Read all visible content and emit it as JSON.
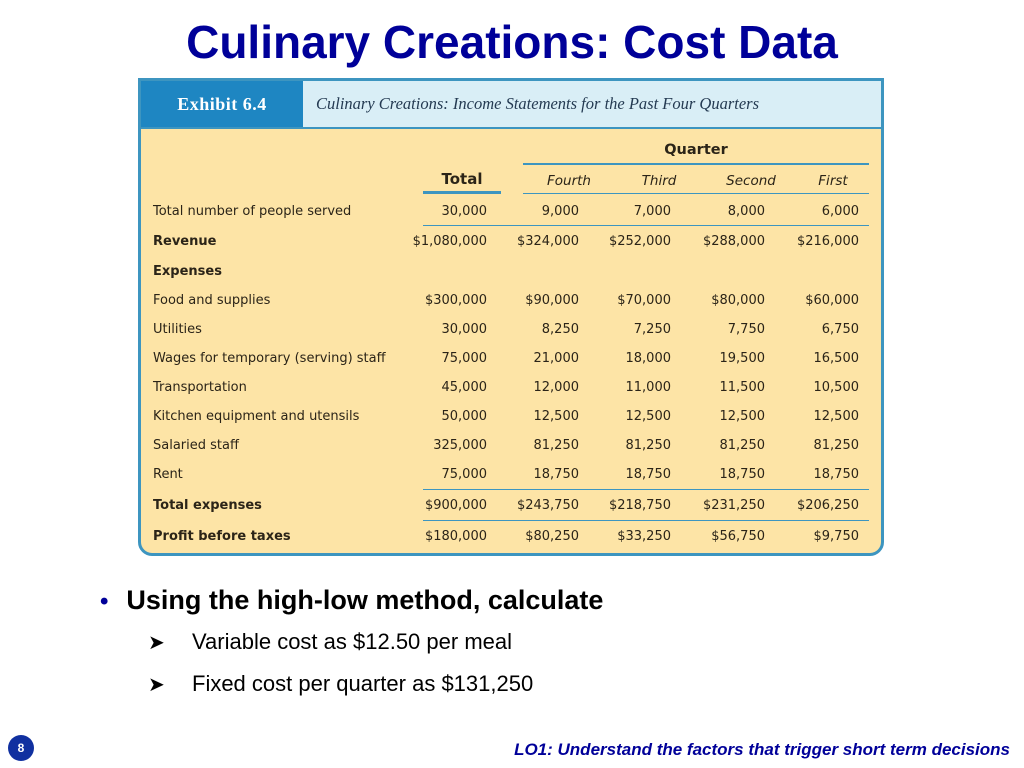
{
  "slide": {
    "title": "Culinary Creations: Cost Data",
    "page_number": "8",
    "footer": "LO1: Understand the factors that trigger short term decisions"
  },
  "exhibit": {
    "tag": "Exhibit 6.4",
    "caption": "Culinary Creations: Income Statements for the Past Four Quarters",
    "quarter_label": "Quarter",
    "headers": {
      "total": "Total",
      "q4": "Fourth",
      "q3": "Third",
      "q2": "Second",
      "q1": "First"
    },
    "rows": [
      {
        "label": "Total number of people served",
        "total": "30,000",
        "q4": "9,000",
        "q3": "7,000",
        "q2": "8,000",
        "q1": "6,000"
      },
      {
        "label": "Revenue",
        "total": "$1,080,000",
        "q4": "$324,000",
        "q3": "$252,000",
        "q2": "$288,000",
        "q1": "$216,000"
      },
      {
        "label": "Expenses",
        "total": "",
        "q4": "",
        "q3": "",
        "q2": "",
        "q1": ""
      },
      {
        "label": "Food and supplies",
        "total": "$300,000",
        "q4": "$90,000",
        "q3": "$70,000",
        "q2": "$80,000",
        "q1": "$60,000"
      },
      {
        "label": "Utilities",
        "total": "30,000",
        "q4": "8,250",
        "q3": "7,250",
        "q2": "7,750",
        "q1": "6,750"
      },
      {
        "label": "Wages for temporary (serving) staff",
        "total": "75,000",
        "q4": "21,000",
        "q3": "18,000",
        "q2": "19,500",
        "q1": "16,500"
      },
      {
        "label": "Transportation",
        "total": "45,000",
        "q4": "12,000",
        "q3": "11,000",
        "q2": "11,500",
        "q1": "10,500"
      },
      {
        "label": "Kitchen equipment and utensils",
        "total": "50,000",
        "q4": "12,500",
        "q3": "12,500",
        "q2": "12,500",
        "q1": "12,500"
      },
      {
        "label": "Salaried staff",
        "total": "325,000",
        "q4": "81,250",
        "q3": "81,250",
        "q2": "81,250",
        "q1": "81,250"
      },
      {
        "label": "Rent",
        "total": "75,000",
        "q4": "18,750",
        "q3": "18,750",
        "q2": "18,750",
        "q1": "18,750"
      },
      {
        "label": "Total expenses",
        "total": "$900,000",
        "q4": "$243,750",
        "q3": "$218,750",
        "q2": "$231,250",
        "q1": "$206,250"
      },
      {
        "label": "Profit before taxes",
        "total": "$180,000",
        "q4": "$80,250",
        "q3": "$33,250",
        "q2": "$56,750",
        "q1": "$9,750"
      }
    ]
  },
  "bullets": {
    "main": "Using the high-low method, calculate",
    "sub": [
      "Variable cost as $12.50 per meal",
      "Fixed cost per quarter as $131,250"
    ]
  },
  "colors": {
    "title": "#000099",
    "exhibit_bg": "#fde4a6",
    "exhibit_border": "#3d95c0",
    "exhibit_tag": "#1e86c2"
  }
}
